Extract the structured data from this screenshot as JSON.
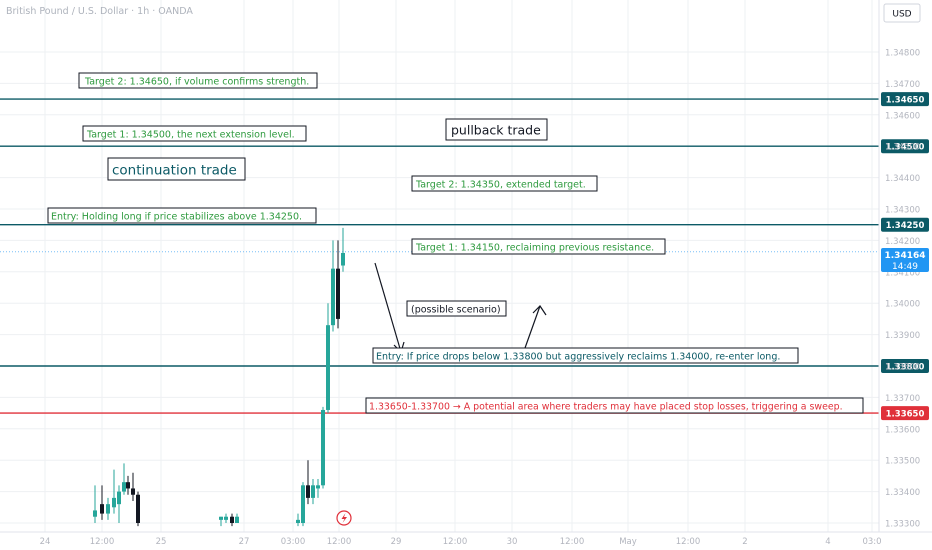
{
  "header": {
    "title": "British Pound / U.S. Dollar · 1h · OANDA",
    "currency": "USD"
  },
  "chart_data": {
    "type": "candlestick",
    "symbol": "GBPUSD",
    "timeframe": "1h",
    "ylim": [
      1.333,
      1.349
    ],
    "y_ticks": [
      "1.34800",
      "1.34700",
      "1.34600",
      "1.34500",
      "1.34400",
      "1.34300",
      "1.34200",
      "1.34100",
      "1.34000",
      "1.33900",
      "1.33800",
      "1.33700",
      "1.33600",
      "1.33500",
      "1.33400",
      "1.33300"
    ],
    "x_ticks": [
      "24",
      "12:00",
      "25",
      "27",
      "03:00",
      "12:00",
      "29",
      "12:00",
      "30",
      "12:00",
      "May",
      "12:00",
      "2",
      "4",
      "03:0"
    ],
    "current_price": {
      "value": "1.34164",
      "countdown": "14:49",
      "color": "#2196f3"
    },
    "horizontal_levels": [
      {
        "value": "1.34650",
        "color": "#0c5a66"
      },
      {
        "value": "1.34500",
        "color": "#0c5a66"
      },
      {
        "value": "1.34250",
        "color": "#0c5a66"
      },
      {
        "value": "1.33800",
        "color": "#0c5a66"
      },
      {
        "value": "1.33650",
        "color": "#e0303a"
      }
    ],
    "candles": [
      {
        "x": 95,
        "o": 1.3332,
        "h": 1.3342,
        "l": 1.333,
        "c": 1.3334
      },
      {
        "x": 102,
        "o": 1.3336,
        "h": 1.3342,
        "l": 1.3331,
        "c": 1.3333
      },
      {
        "x": 108,
        "o": 1.3333,
        "h": 1.3338,
        "l": 1.3331,
        "c": 1.3336
      },
      {
        "x": 114,
        "o": 1.3335,
        "h": 1.3347,
        "l": 1.3333,
        "c": 1.3338
      },
      {
        "x": 119,
        "o": 1.3336,
        "h": 1.3342,
        "l": 1.333,
        "c": 1.334
      },
      {
        "x": 124,
        "o": 1.334,
        "h": 1.3349,
        "l": 1.3339,
        "c": 1.3343
      },
      {
        "x": 128,
        "o": 1.3343,
        "h": 1.3345,
        "l": 1.3339,
        "c": 1.3341
      },
      {
        "x": 133,
        "o": 1.3341,
        "h": 1.3346,
        "l": 1.3337,
        "c": 1.3339
      },
      {
        "x": 138,
        "o": 1.3339,
        "h": 1.334,
        "l": 1.3329,
        "c": 1.333
      },
      {
        "x": 221,
        "o": 1.3331,
        "h": 1.3332,
        "l": 1.3329,
        "c": 1.3332
      },
      {
        "x": 226,
        "o": 1.3331,
        "h": 1.3333,
        "l": 1.333,
        "c": 1.3332
      },
      {
        "x": 232,
        "o": 1.3332,
        "h": 1.3333,
        "l": 1.3329,
        "c": 1.333
      },
      {
        "x": 237,
        "o": 1.333,
        "h": 1.3333,
        "l": 1.333,
        "c": 1.3332
      },
      {
        "x": 298,
        "o": 1.333,
        "h": 1.3333,
        "l": 1.3329,
        "c": 1.3331
      },
      {
        "x": 303,
        "o": 1.333,
        "h": 1.3343,
        "l": 1.3329,
        "c": 1.3342
      },
      {
        "x": 308,
        "o": 1.3342,
        "h": 1.335,
        "l": 1.3336,
        "c": 1.3338
      },
      {
        "x": 313,
        "o": 1.3338,
        "h": 1.3344,
        "l": 1.3336,
        "c": 1.3342
      },
      {
        "x": 318,
        "o": 1.3341,
        "h": 1.3344,
        "l": 1.3338,
        "c": 1.3342
      },
      {
        "x": 323,
        "o": 1.3342,
        "h": 1.3367,
        "l": 1.3341,
        "c": 1.3366
      },
      {
        "x": 328,
        "o": 1.3366,
        "h": 1.34,
        "l": 1.3365,
        "c": 1.3393
      },
      {
        "x": 333,
        "o": 1.3393,
        "h": 1.342,
        "l": 1.3391,
        "c": 1.3411
      },
      {
        "x": 338,
        "o": 1.3411,
        "h": 1.342,
        "l": 1.3392,
        "c": 1.3395
      },
      {
        "x": 343,
        "o": 1.3412,
        "h": 1.3424,
        "l": 1.341,
        "c": 1.3416
      }
    ],
    "annotations": {
      "target2_upper": "Target 2: 1.34650, if volume confirms strength.",
      "target1_upper": "Target 1: 1.34500, the next extension level.",
      "continuation": "continuation trade",
      "entry_long": "Entry: Holding long if price stabilizes above 1.34250.",
      "pullback": "pullback trade",
      "target2_pullback": "Target 2: 1.34350, extended target.",
      "target1_pullback": "Target 1: 1.34150, reclaiming previous resistance.",
      "possible": "(possible scenario)",
      "entry_reclaim": "Entry: If price drops below 1.33800 but aggressively reclaims 1.34000, re-enter long.",
      "stop_zone": "1.33650-1.33700 → A potential area where traders may have placed stop losses, triggering a sweep."
    },
    "colors": {
      "up": "#26a69a",
      "down": "#131722",
      "green_text": "#2e9a3e",
      "teal_text": "#0c5a66",
      "red_text": "#e0303a",
      "grid": "#eef0f3"
    }
  }
}
